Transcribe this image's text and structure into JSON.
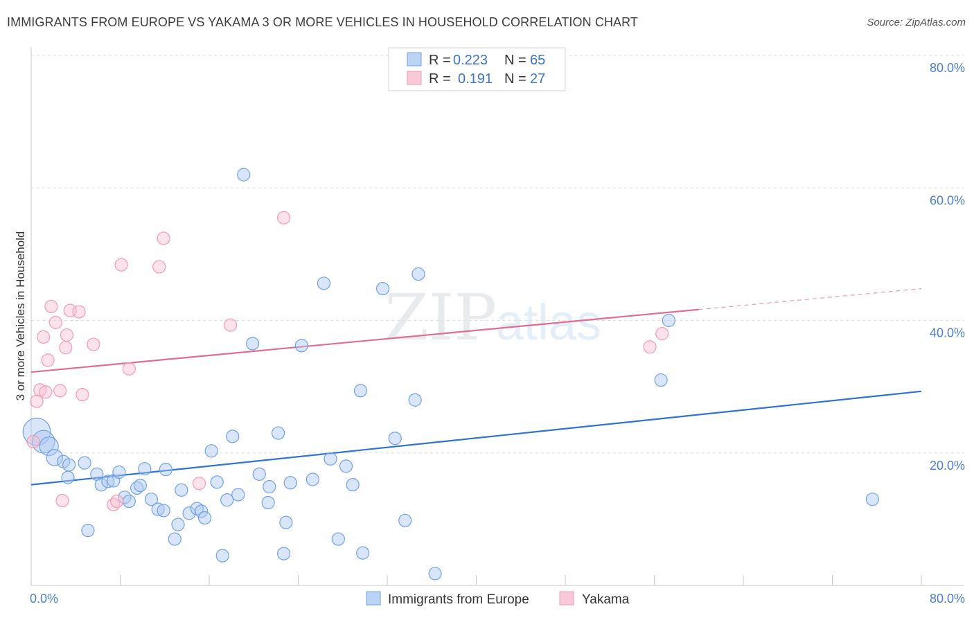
{
  "title": "IMMIGRANTS FROM EUROPE VS YAKAMA 3 OR MORE VEHICLES IN HOUSEHOLD CORRELATION CHART",
  "source": "Source: ZipAtlas.com",
  "watermark": {
    "zip": "ZIP",
    "atlas": "atlas"
  },
  "legend_top": [
    {
      "r_label": "R = ",
      "r_value": "0.223",
      "n_label": "N = ",
      "n_value": "65"
    },
    {
      "r_label": "R = ",
      "r_value": "0.191",
      "n_label": "N = ",
      "n_value": "27"
    }
  ],
  "chart_data": {
    "type": "scatter",
    "title": "IMMIGRANTS FROM EUROPE VS YAKAMA 3 OR MORE VEHICLES IN HOUSEHOLD CORRELATION CHART",
    "xlabel": "",
    "ylabel": "3 or more Vehicles in Household",
    "xlim": [
      0,
      80
    ],
    "ylim": [
      0,
      80
    ],
    "x_tick_labels": [
      "0.0%",
      "80.0%"
    ],
    "y_tick_labels": [
      "20.0%",
      "40.0%",
      "60.0%",
      "80.0%"
    ],
    "y_ticks": [
      20,
      40,
      60,
      80
    ],
    "grid": true,
    "legend_position": "top-center",
    "colors": {
      "europe": "#6fa0e6",
      "europe_line": "#2f72d0",
      "yakama": "#f09ab4",
      "yakama_line": "#e06b93"
    },
    "series": [
      {
        "name": "Immigrants from Europe",
        "trend": {
          "x": [
            0,
            80
          ],
          "y": [
            15.2,
            29.3
          ]
        },
        "points": [
          [
            0.5,
            23.2,
            2.2
          ],
          [
            1.1,
            21.7,
            1.8
          ],
          [
            1.6,
            21.0,
            1.5
          ],
          [
            2.1,
            19.3,
            1.3
          ],
          [
            2.9,
            18.7,
            1.0
          ],
          [
            3.4,
            18.2,
            1.0
          ],
          [
            4.8,
            18.5,
            1.0
          ],
          [
            3.3,
            16.3,
            1.0
          ],
          [
            5.1,
            8.3,
            1.0
          ],
          [
            5.9,
            16.8,
            1.0
          ],
          [
            6.3,
            15.2,
            1.0
          ],
          [
            6.9,
            15.7,
            1.0
          ],
          [
            7.4,
            15.8,
            1.0
          ],
          [
            7.9,
            17.1,
            1.0
          ],
          [
            8.4,
            13.3,
            1.0
          ],
          [
            8.8,
            12.7,
            1.0
          ],
          [
            9.5,
            14.7,
            1.0
          ],
          [
            9.8,
            15.1,
            1.0
          ],
          [
            10.2,
            17.6,
            1.0
          ],
          [
            10.8,
            13.0,
            1.0
          ],
          [
            11.4,
            11.5,
            1.0
          ],
          [
            11.9,
            11.3,
            1.0
          ],
          [
            12.1,
            17.5,
            1.0
          ],
          [
            12.9,
            7.0,
            1.0
          ],
          [
            13.2,
            9.2,
            1.0
          ],
          [
            13.5,
            14.4,
            1.0
          ],
          [
            14.2,
            10.9,
            1.0
          ],
          [
            14.9,
            11.6,
            1.0
          ],
          [
            15.3,
            11.2,
            1.0
          ],
          [
            15.6,
            10.2,
            1.0
          ],
          [
            16.2,
            20.3,
            1.0
          ],
          [
            16.7,
            15.6,
            1.0
          ],
          [
            17.2,
            4.5,
            1.0
          ],
          [
            17.6,
            12.9,
            1.0
          ],
          [
            18.1,
            22.5,
            1.0
          ],
          [
            18.6,
            13.7,
            1.0
          ],
          [
            19.1,
            62.0,
            1.0
          ],
          [
            19.9,
            36.5,
            1.0
          ],
          [
            20.5,
            16.8,
            1.0
          ],
          [
            21.3,
            12.5,
            1.0
          ],
          [
            21.4,
            14.9,
            1.0
          ],
          [
            22.2,
            23.0,
            1.0
          ],
          [
            22.7,
            4.8,
            1.0
          ],
          [
            22.9,
            9.5,
            1.0
          ],
          [
            23.3,
            15.5,
            1.0
          ],
          [
            24.3,
            36.2,
            1.0
          ],
          [
            25.3,
            16.0,
            1.0
          ],
          [
            26.3,
            45.6,
            1.0
          ],
          [
            26.9,
            19.1,
            1.0
          ],
          [
            27.6,
            7.0,
            1.0
          ],
          [
            28.3,
            18.0,
            1.0
          ],
          [
            28.9,
            15.2,
            1.0
          ],
          [
            29.6,
            29.4,
            1.0
          ],
          [
            29.8,
            4.9,
            1.0
          ],
          [
            31.6,
            44.8,
            1.0
          ],
          [
            32.7,
            22.2,
            1.0
          ],
          [
            33.6,
            9.8,
            1.0
          ],
          [
            34.5,
            28.0,
            1.0
          ],
          [
            34.8,
            47.0,
            1.0
          ],
          [
            36.3,
            1.8,
            1.0
          ],
          [
            56.6,
            31.0,
            1.0
          ],
          [
            57.3,
            40.0,
            1.0
          ],
          [
            75.6,
            13.0,
            1.0
          ]
        ]
      },
      {
        "name": "Yakama",
        "trend": {
          "x": [
            0,
            80
          ],
          "y": [
            32.2,
            44.8
          ]
        },
        "points": [
          [
            0.2,
            21.7,
            1.0
          ],
          [
            0.5,
            27.8,
            1.0
          ],
          [
            0.8,
            29.5,
            1.0
          ],
          [
            1.1,
            37.5,
            1.0
          ],
          [
            1.3,
            29.2,
            1.0
          ],
          [
            1.5,
            34.0,
            1.0
          ],
          [
            1.8,
            42.1,
            1.0
          ],
          [
            2.2,
            39.7,
            1.0
          ],
          [
            2.6,
            29.4,
            1.0
          ],
          [
            2.8,
            12.8,
            1.0
          ],
          [
            3.1,
            35.9,
            1.0
          ],
          [
            3.2,
            37.8,
            1.0
          ],
          [
            3.5,
            41.5,
            1.0
          ],
          [
            4.3,
            41.3,
            1.0
          ],
          [
            4.6,
            28.8,
            1.0
          ],
          [
            5.6,
            36.4,
            1.0
          ],
          [
            7.4,
            12.2,
            1.0
          ],
          [
            7.7,
            12.7,
            1.0
          ],
          [
            8.1,
            48.4,
            1.0
          ],
          [
            8.8,
            32.7,
            1.0
          ],
          [
            11.5,
            48.1,
            1.0
          ],
          [
            11.9,
            52.4,
            1.0
          ],
          [
            15.1,
            15.4,
            1.0
          ],
          [
            17.9,
            39.3,
            1.0
          ],
          [
            22.7,
            55.5,
            1.0
          ],
          [
            55.6,
            36.0,
            1.0
          ],
          [
            56.7,
            38.0,
            1.0
          ]
        ]
      }
    ]
  },
  "bottom_legend": [
    "Immigrants from Europe",
    "Yakama"
  ]
}
